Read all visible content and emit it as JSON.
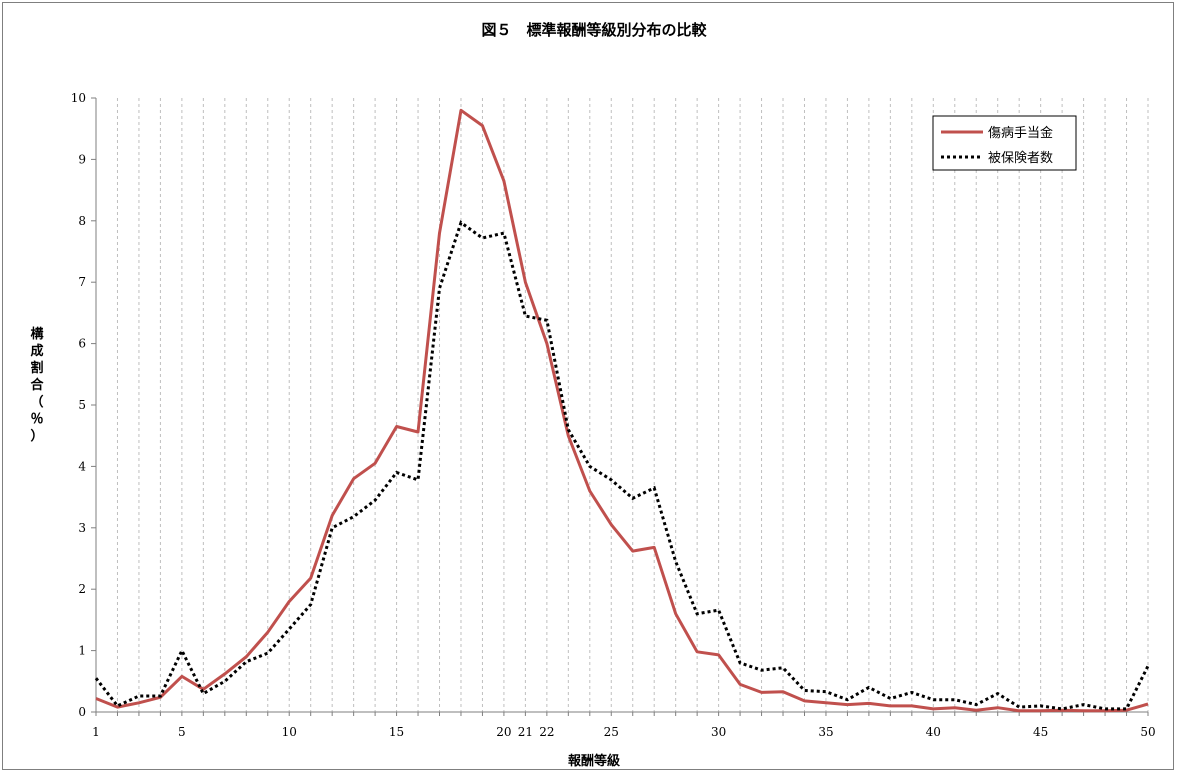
{
  "chart_data": {
    "type": "line",
    "title": "図５　標準報酬等級別分布の比較",
    "xlabel": "報酬等級",
    "ylabel": "構成割合（％）",
    "ylim": [
      0,
      10
    ],
    "xlim": [
      1,
      50
    ],
    "y_ticks": [
      "0",
      "1",
      "2",
      "3",
      "4",
      "5",
      "6",
      "7",
      "8",
      "9",
      "10"
    ],
    "x_ticks": [
      {
        "x": 1,
        "label": "1"
      },
      {
        "x": 5,
        "label": "5"
      },
      {
        "x": 10,
        "label": "10"
      },
      {
        "x": 15,
        "label": "15"
      },
      {
        "x": 20,
        "label": "20"
      },
      {
        "x": 21,
        "label": "21"
      },
      {
        "x": 22,
        "label": "22"
      },
      {
        "x": 25,
        "label": "25"
      },
      {
        "x": 30,
        "label": "30"
      },
      {
        "x": 35,
        "label": "35"
      },
      {
        "x": 40,
        "label": "40"
      },
      {
        "x": 45,
        "label": "45"
      },
      {
        "x": 50,
        "label": "50"
      }
    ],
    "grid": "vertical dashed at each grade",
    "legend_position": "top-right",
    "x": [
      1,
      2,
      3,
      4,
      5,
      6,
      7,
      8,
      9,
      10,
      11,
      12,
      13,
      14,
      15,
      16,
      17,
      18,
      19,
      20,
      21,
      22,
      23,
      24,
      25,
      26,
      27,
      28,
      29,
      30,
      31,
      32,
      33,
      34,
      35,
      36,
      37,
      38,
      39,
      40,
      41,
      42,
      43,
      44,
      45,
      46,
      47,
      48,
      49,
      50
    ],
    "series": [
      {
        "name": "傷病手当金",
        "color": "#c0504d",
        "style": "solid",
        "values": [
          0.22,
          0.08,
          0.15,
          0.24,
          0.58,
          0.37,
          0.62,
          0.9,
          1.3,
          1.8,
          2.18,
          3.2,
          3.8,
          4.05,
          4.65,
          4.56,
          7.8,
          9.8,
          9.55,
          8.65,
          7.0,
          6.0,
          4.5,
          3.6,
          3.05,
          2.62,
          2.68,
          1.6,
          0.98,
          0.93,
          0.45,
          0.32,
          0.33,
          0.18,
          0.15,
          0.12,
          0.14,
          0.1,
          0.1,
          0.05,
          0.07,
          0.03,
          0.07,
          0.02,
          0.02,
          0.03,
          0.02,
          0.02,
          0.03,
          0.13
        ]
      },
      {
        "name": "被保険者数",
        "color": "#000000",
        "style": "dotted",
        "values": [
          0.55,
          0.1,
          0.26,
          0.26,
          1.0,
          0.3,
          0.5,
          0.82,
          0.96,
          1.35,
          1.75,
          3.0,
          3.18,
          3.45,
          3.9,
          3.78,
          6.9,
          7.97,
          7.72,
          7.8,
          6.45,
          6.38,
          4.6,
          4.0,
          3.78,
          3.48,
          3.65,
          2.45,
          1.6,
          1.66,
          0.8,
          0.68,
          0.72,
          0.35,
          0.33,
          0.2,
          0.4,
          0.22,
          0.32,
          0.2,
          0.2,
          0.12,
          0.3,
          0.08,
          0.1,
          0.05,
          0.12,
          0.05,
          0.05,
          0.75
        ]
      }
    ]
  }
}
